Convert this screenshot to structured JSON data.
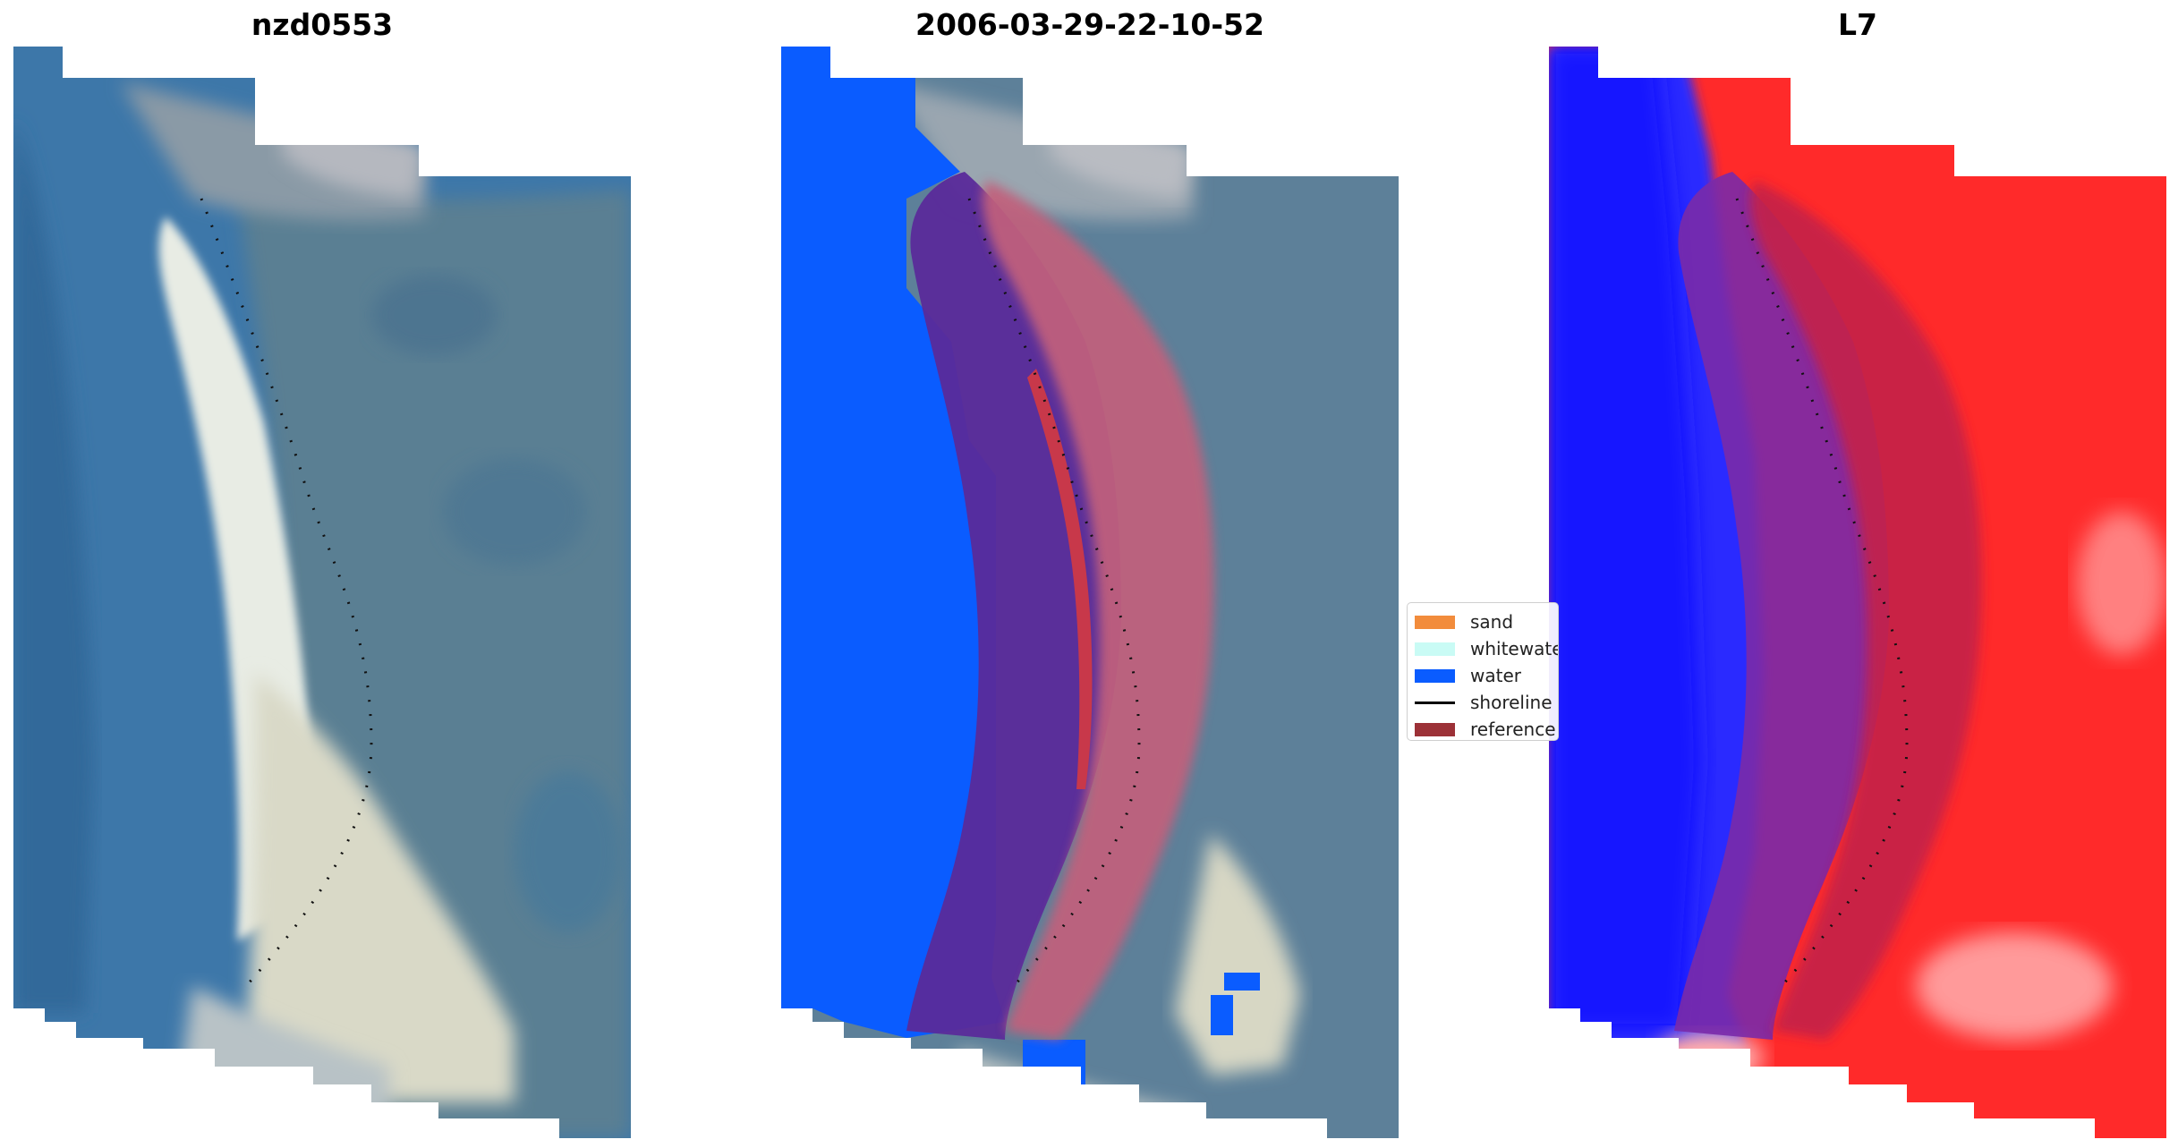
{
  "panels": [
    {
      "title": "nzd0553",
      "kind": "rgb"
    },
    {
      "title": "2006-03-29-22-10-52",
      "kind": "classified"
    },
    {
      "title": "L7",
      "kind": "index"
    }
  ],
  "legend": {
    "items": [
      {
        "label": "sand",
        "type": "swatch",
        "color": "#f28c3c"
      },
      {
        "label": "whitewater",
        "type": "swatch",
        "color": "#c9fbf5"
      },
      {
        "label": "water",
        "type": "swatch",
        "color": "#0a5cff"
      },
      {
        "label": "shoreline",
        "type": "line",
        "color": "#000000"
      },
      {
        "label": "reference",
        "type": "swatch",
        "color": "#9c3137"
      }
    ]
  },
  "colors": {
    "water_class": "#0a5cff",
    "reference_buffer": "#9c3137",
    "sea_blue": "#3a73ad",
    "land_red": "#ff1c1c"
  }
}
